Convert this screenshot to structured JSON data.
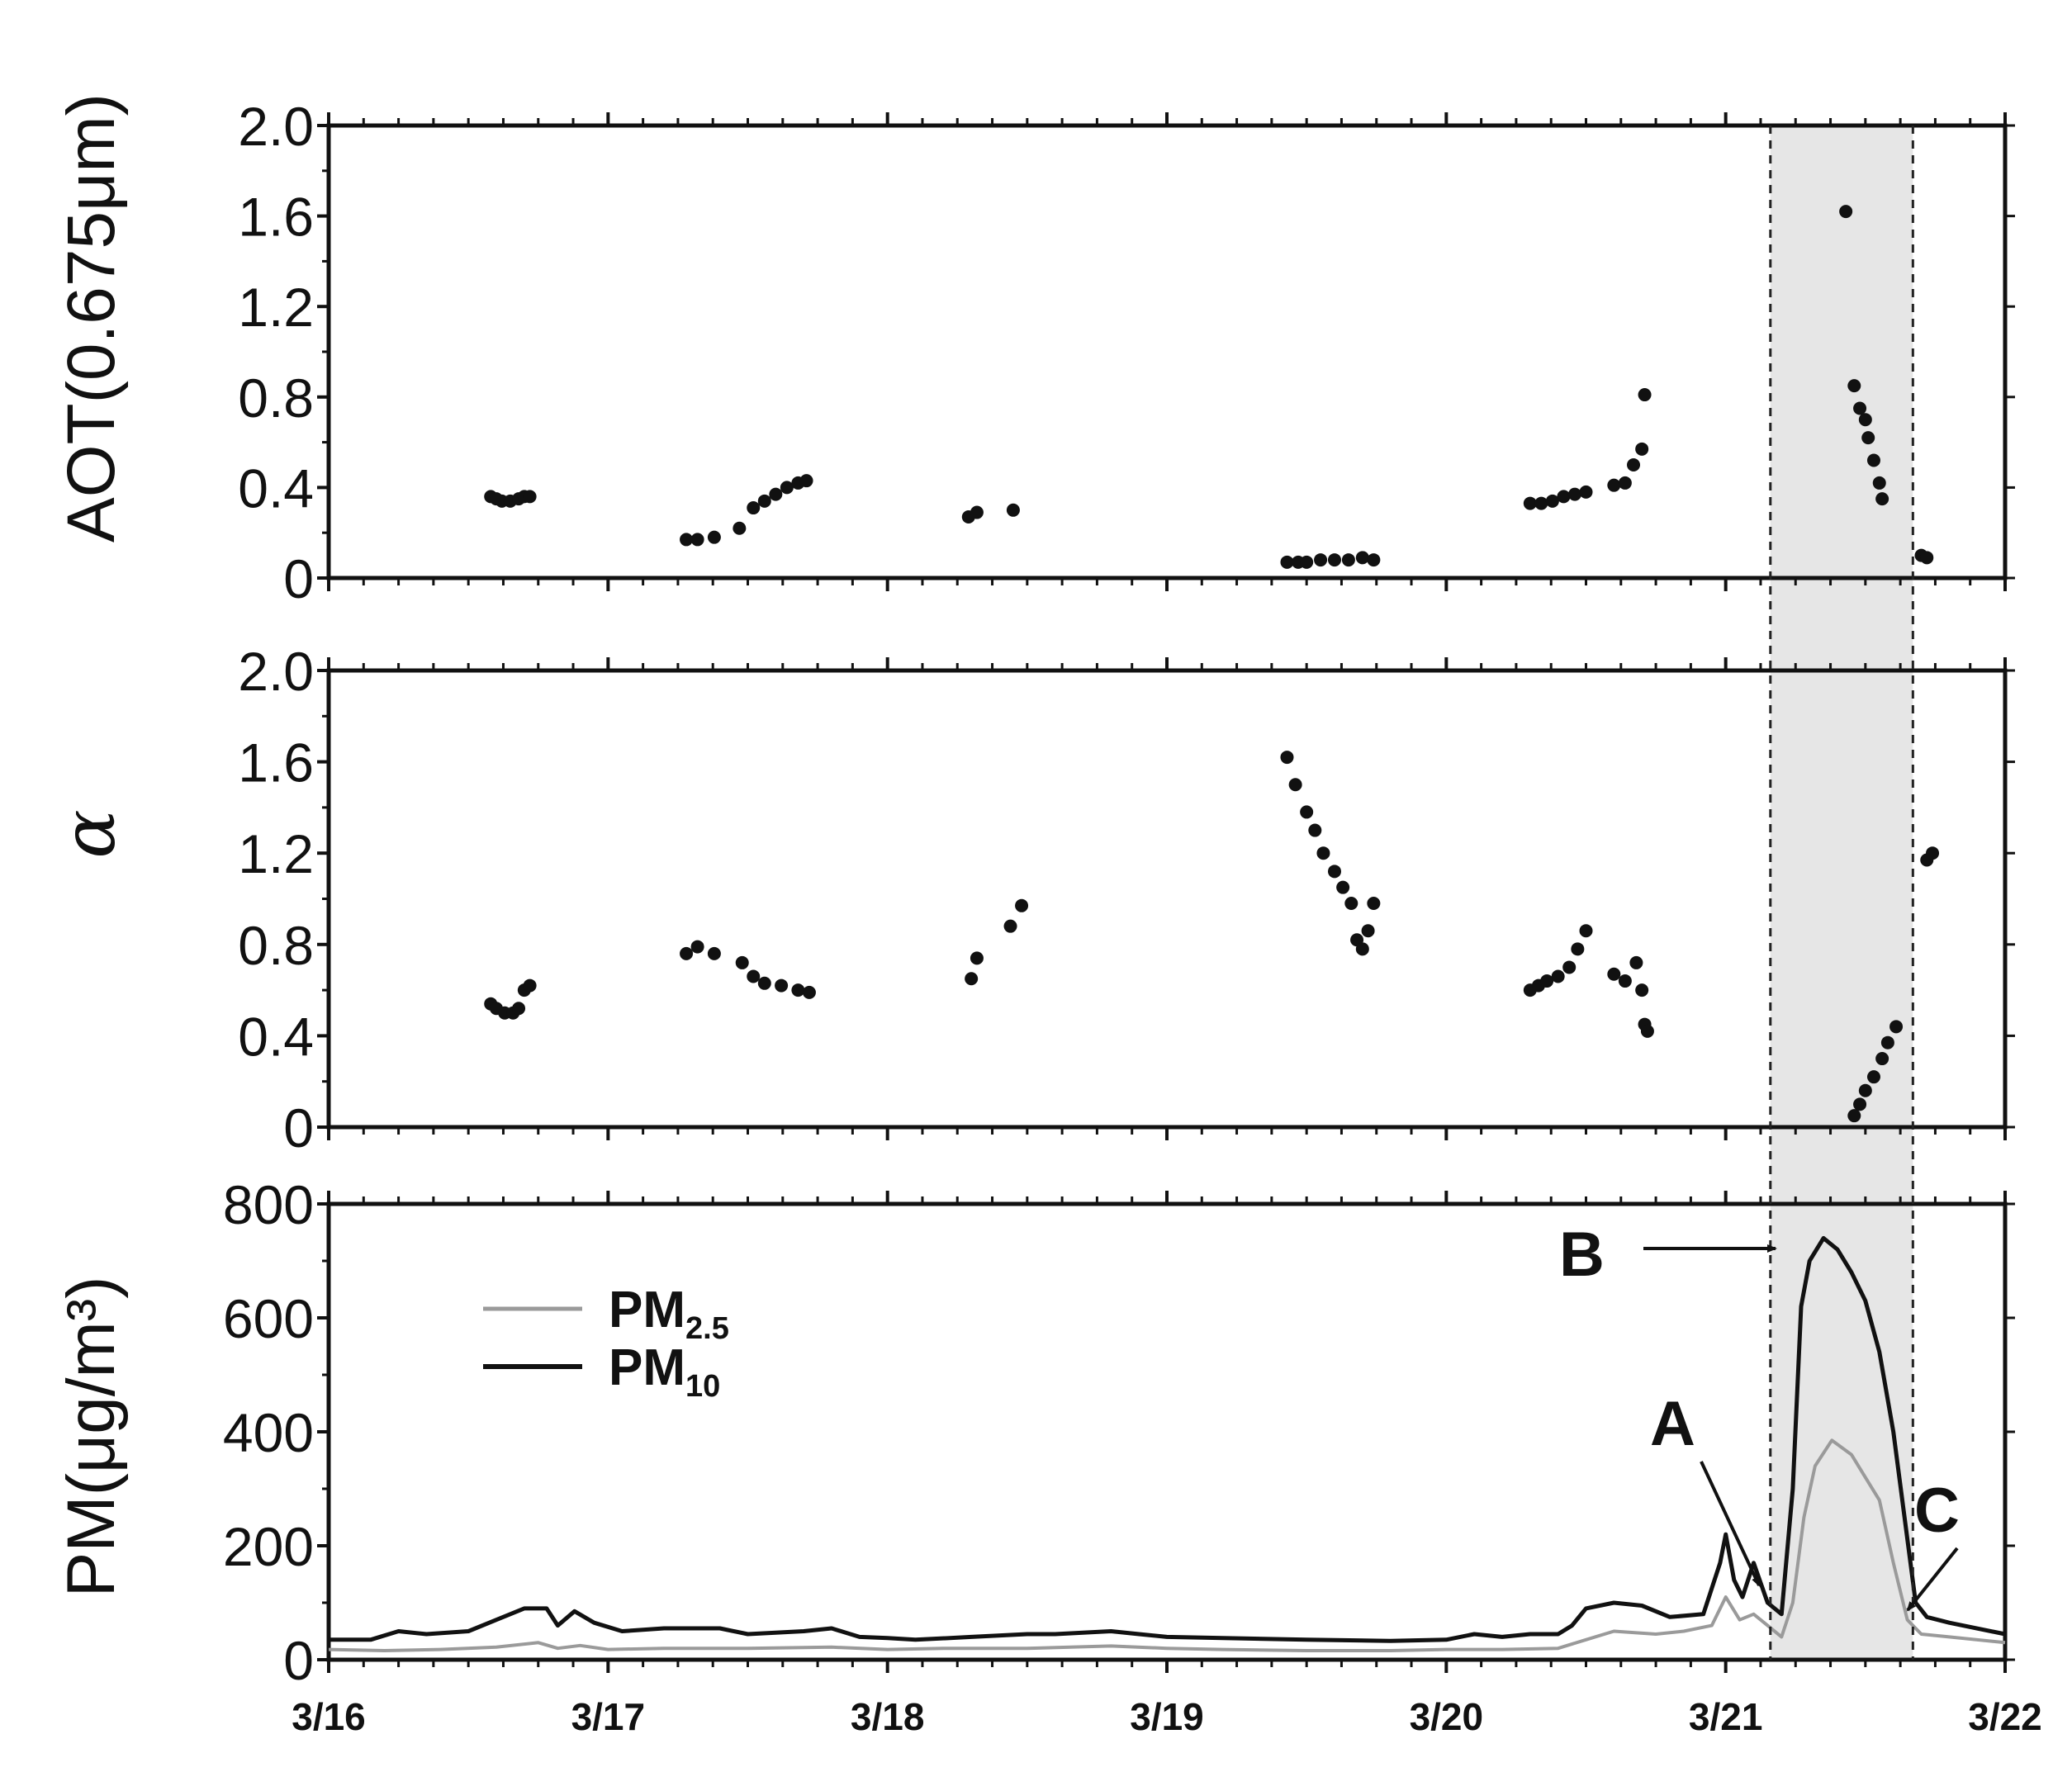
{
  "chart_data": [
    {
      "type": "scatter",
      "ylabel": "AOT(0.675μm)",
      "ylim": [
        0,
        2.0
      ],
      "yticks": [
        "0",
        "0.4",
        "0.8",
        "1.2",
        "1.6",
        "2.0"
      ],
      "xlim": [
        0,
        6
      ],
      "series": [
        {
          "values": [
            [
              0.58,
              0.36
            ],
            [
              0.6,
              0.35
            ],
            [
              0.62,
              0.34
            ],
            [
              0.65,
              0.34
            ],
            [
              0.68,
              0.35
            ],
            [
              0.7,
              0.36
            ],
            [
              0.72,
              0.36
            ],
            [
              1.28,
              0.17
            ],
            [
              1.32,
              0.17
            ],
            [
              1.38,
              0.18
            ],
            [
              1.47,
              0.22
            ],
            [
              1.52,
              0.31
            ],
            [
              1.56,
              0.34
            ],
            [
              1.6,
              0.37
            ],
            [
              1.64,
              0.4
            ],
            [
              1.68,
              0.42
            ],
            [
              1.71,
              0.43
            ],
            [
              2.29,
              0.27
            ],
            [
              2.32,
              0.29
            ],
            [
              2.45,
              0.3
            ],
            [
              3.43,
              0.07
            ],
            [
              3.47,
              0.07
            ],
            [
              3.5,
              0.07
            ],
            [
              3.55,
              0.08
            ],
            [
              3.6,
              0.08
            ],
            [
              3.65,
              0.08
            ],
            [
              3.7,
              0.09
            ],
            [
              3.74,
              0.08
            ],
            [
              4.3,
              0.33
            ],
            [
              4.34,
              0.33
            ],
            [
              4.38,
              0.34
            ],
            [
              4.42,
              0.36
            ],
            [
              4.46,
              0.37
            ],
            [
              4.5,
              0.38
            ],
            [
              4.6,
              0.41
            ],
            [
              4.64,
              0.42
            ],
            [
              4.67,
              0.5
            ],
            [
              4.7,
              0.57
            ],
            [
              4.71,
              0.81
            ],
            [
              5.43,
              1.62
            ],
            [
              5.46,
              0.85
            ],
            [
              5.48,
              0.75
            ],
            [
              5.5,
              0.7
            ],
            [
              5.51,
              0.62
            ],
            [
              5.53,
              0.52
            ],
            [
              5.55,
              0.42
            ],
            [
              5.56,
              0.35
            ],
            [
              5.7,
              0.1
            ],
            [
              5.72,
              0.09
            ]
          ]
        }
      ]
    },
    {
      "type": "scatter",
      "ylabel": "α",
      "ylim": [
        0,
        2.0
      ],
      "yticks": [
        "0",
        "0.4",
        "0.8",
        "1.2",
        "1.6",
        "2.0"
      ],
      "xlim": [
        0,
        6
      ],
      "series": [
        {
          "values": [
            [
              0.58,
              0.54
            ],
            [
              0.6,
              0.52
            ],
            [
              0.63,
              0.5
            ],
            [
              0.66,
              0.5
            ],
            [
              0.68,
              0.52
            ],
            [
              0.7,
              0.6
            ],
            [
              0.72,
              0.62
            ],
            [
              1.28,
              0.76
            ],
            [
              1.32,
              0.79
            ],
            [
              1.38,
              0.76
            ],
            [
              1.48,
              0.72
            ],
            [
              1.52,
              0.66
            ],
            [
              1.56,
              0.63
            ],
            [
              1.62,
              0.62
            ],
            [
              1.68,
              0.6
            ],
            [
              1.72,
              0.59
            ],
            [
              2.3,
              0.65
            ],
            [
              2.32,
              0.74
            ],
            [
              2.44,
              0.88
            ],
            [
              2.48,
              0.97
            ],
            [
              3.43,
              1.62
            ],
            [
              3.46,
              1.5
            ],
            [
              3.5,
              1.38
            ],
            [
              3.53,
              1.3
            ],
            [
              3.56,
              1.2
            ],
            [
              3.6,
              1.12
            ],
            [
              3.63,
              1.05
            ],
            [
              3.66,
              0.98
            ],
            [
              3.68,
              0.82
            ],
            [
              3.7,
              0.78
            ],
            [
              3.72,
              0.86
            ],
            [
              3.74,
              0.98
            ],
            [
              4.3,
              0.6
            ],
            [
              4.33,
              0.62
            ],
            [
              4.36,
              0.64
            ],
            [
              4.4,
              0.66
            ],
            [
              4.44,
              0.7
            ],
            [
              4.47,
              0.78
            ],
            [
              4.5,
              0.86
            ],
            [
              4.6,
              0.67
            ],
            [
              4.64,
              0.64
            ],
            [
              4.68,
              0.72
            ],
            [
              4.7,
              0.6
            ],
            [
              4.71,
              0.45
            ],
            [
              4.72,
              0.42
            ],
            [
              5.46,
              0.05
            ],
            [
              5.48,
              0.1
            ],
            [
              5.5,
              0.16
            ],
            [
              5.53,
              0.22
            ],
            [
              5.56,
              0.3
            ],
            [
              5.58,
              0.37
            ],
            [
              5.61,
              0.44
            ],
            [
              5.72,
              1.17
            ],
            [
              5.74,
              1.2
            ]
          ]
        }
      ]
    },
    {
      "type": "line",
      "ylabel": "PM(μg/m³)",
      "ylim": [
        0,
        800
      ],
      "yticks": [
        "0",
        "200",
        "400",
        "600",
        "800"
      ],
      "xlim": [
        0,
        6
      ],
      "series": [
        {
          "name": "PM",
          "name_sub": "2.5",
          "color": "#9a9a9a",
          "values": [
            [
              0,
              18
            ],
            [
              0.2,
              16
            ],
            [
              0.4,
              18
            ],
            [
              0.6,
              22
            ],
            [
              0.75,
              30
            ],
            [
              0.82,
              20
            ],
            [
              0.9,
              25
            ],
            [
              1.0,
              18
            ],
            [
              1.2,
              20
            ],
            [
              1.5,
              20
            ],
            [
              1.8,
              22
            ],
            [
              2.0,
              18
            ],
            [
              2.2,
              20
            ],
            [
              2.5,
              20
            ],
            [
              2.8,
              24
            ],
            [
              3.0,
              20
            ],
            [
              3.2,
              18
            ],
            [
              3.5,
              16
            ],
            [
              3.8,
              16
            ],
            [
              4.0,
              18
            ],
            [
              4.2,
              18
            ],
            [
              4.4,
              20
            ],
            [
              4.5,
              35
            ],
            [
              4.6,
              50
            ],
            [
              4.75,
              45
            ],
            [
              4.85,
              50
            ],
            [
              4.95,
              60
            ],
            [
              5.0,
              110
            ],
            [
              5.05,
              70
            ],
            [
              5.1,
              80
            ],
            [
              5.15,
              60
            ],
            [
              5.2,
              40
            ],
            [
              5.24,
              100
            ],
            [
              5.28,
              250
            ],
            [
              5.32,
              340
            ],
            [
              5.38,
              385
            ],
            [
              5.45,
              360
            ],
            [
              5.5,
              320
            ],
            [
              5.55,
              280
            ],
            [
              5.6,
              170
            ],
            [
              5.65,
              70
            ],
            [
              5.7,
              45
            ],
            [
              5.8,
              40
            ],
            [
              6.0,
              30
            ]
          ]
        },
        {
          "name": "PM",
          "name_sub": "10",
          "color": "#111111",
          "values": [
            [
              0,
              35
            ],
            [
              0.15,
              35
            ],
            [
              0.25,
              50
            ],
            [
              0.35,
              45
            ],
            [
              0.5,
              50
            ],
            [
              0.6,
              70
            ],
            [
              0.7,
              90
            ],
            [
              0.78,
              90
            ],
            [
              0.82,
              60
            ],
            [
              0.88,
              85
            ],
            [
              0.95,
              65
            ],
            [
              1.05,
              50
            ],
            [
              1.2,
              55
            ],
            [
              1.4,
              55
            ],
            [
              1.5,
              45
            ],
            [
              1.7,
              50
            ],
            [
              1.8,
              55
            ],
            [
              1.9,
              40
            ],
            [
              2.0,
              38
            ],
            [
              2.1,
              35
            ],
            [
              2.3,
              40
            ],
            [
              2.5,
              45
            ],
            [
              2.6,
              45
            ],
            [
              2.8,
              50
            ],
            [
              2.9,
              45
            ],
            [
              3.0,
              40
            ],
            [
              3.2,
              38
            ],
            [
              3.5,
              35
            ],
            [
              3.8,
              33
            ],
            [
              4.0,
              35
            ],
            [
              4.1,
              45
            ],
            [
              4.2,
              40
            ],
            [
              4.3,
              45
            ],
            [
              4.4,
              45
            ],
            [
              4.45,
              60
            ],
            [
              4.5,
              90
            ],
            [
              4.6,
              100
            ],
            [
              4.7,
              95
            ],
            [
              4.8,
              75
            ],
            [
              4.92,
              80
            ],
            [
              4.98,
              170
            ],
            [
              5.0,
              220
            ],
            [
              5.03,
              140
            ],
            [
              5.06,
              110
            ],
            [
              5.1,
              170
            ],
            [
              5.15,
              100
            ],
            [
              5.2,
              80
            ],
            [
              5.24,
              300
            ],
            [
              5.27,
              620
            ],
            [
              5.3,
              700
            ],
            [
              5.35,
              740
            ],
            [
              5.4,
              720
            ],
            [
              5.45,
              680
            ],
            [
              5.5,
              630
            ],
            [
              5.55,
              540
            ],
            [
              5.6,
              400
            ],
            [
              5.64,
              250
            ],
            [
              5.68,
              100
            ],
            [
              5.72,
              75
            ],
            [
              5.8,
              65
            ],
            [
              6.0,
              45
            ]
          ]
        }
      ],
      "legend": "top-left",
      "annotations": [
        "A",
        "B",
        "C"
      ]
    }
  ],
  "x_axis": {
    "tick_labels": [
      "3/16",
      "3/17",
      "3/18",
      "3/19",
      "3/20",
      "3/21",
      "3/22"
    ]
  },
  "highlight": {
    "x_range": [
      5.16,
      5.67
    ],
    "fill": "#e6e6e6"
  }
}
